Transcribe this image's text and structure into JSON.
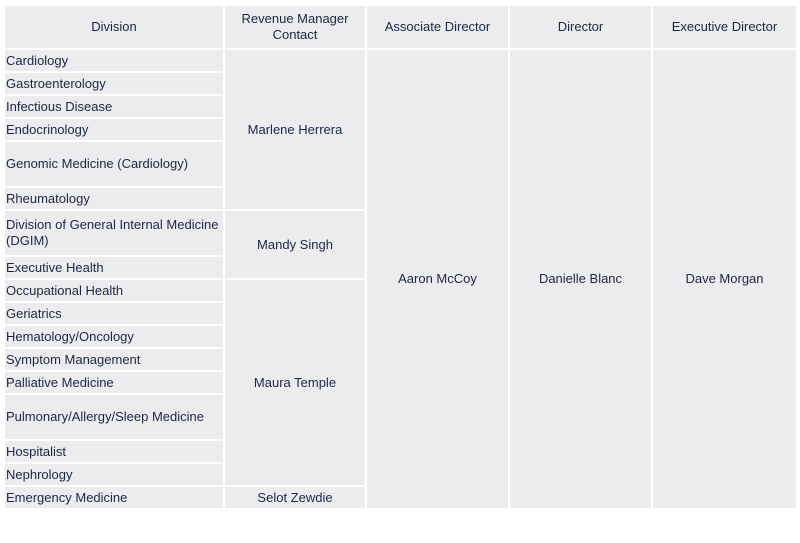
{
  "headers": {
    "division": "Division",
    "revenue_manager": "Revenue Manager Contact",
    "associate_director": "Associate Director",
    "director": "Director",
    "executive_director": "Executive Director"
  },
  "divisions": [
    "Cardiology",
    "Gastroenterology",
    "Infectious Disease",
    "Endocrinology",
    "Genomic Medicine (Cardiology)",
    "Rheumatology",
    "Division of General Internal Medicine (DGIM)",
    "Executive Health",
    "Occupational Health",
    "Geriatrics",
    "Hematology/Oncology",
    "Symptom Management",
    "Palliative Medicine",
    "Pulmonary/Allergy/Sleep Medicine",
    "Hospitalist",
    "Nephrology",
    "Emergency Medicine"
  ],
  "revenue_managers": [
    "Marlene Herrera",
    "Mandy Singh",
    "Maura Temple",
    "Selot Zewdie"
  ],
  "associate_director": "Aaron McCoy",
  "director": "Danielle Blanc",
  "executive_director": "Dave Morgan"
}
